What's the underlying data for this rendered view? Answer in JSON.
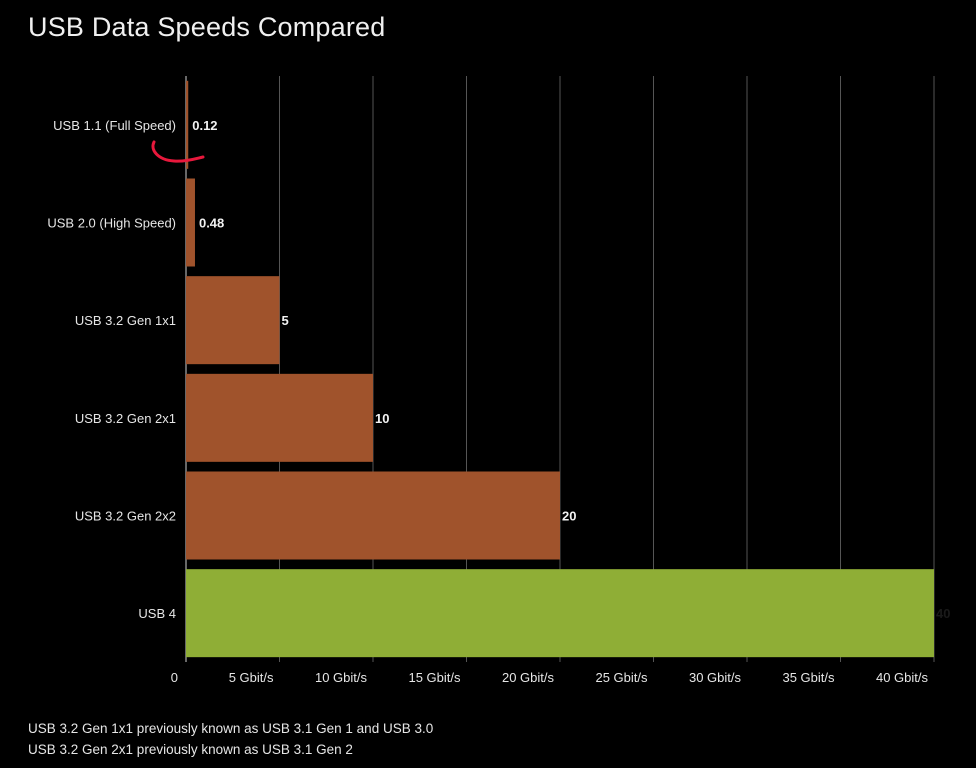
{
  "chart_data": {
    "type": "bar",
    "orientation": "horizontal",
    "title": "USB Data Speeds Compared",
    "categories": [
      "USB 1.1 (Full Speed)",
      "USB 2.0 (High Speed)",
      "USB 3.2 Gen 1x1",
      "USB 3.2 Gen 2x1",
      "USB 3.2 Gen 2x2",
      "USB 4"
    ],
    "values": [
      0.12,
      0.48,
      5,
      10,
      20,
      40
    ],
    "value_labels": [
      "0.12",
      "0.48",
      "5",
      "10",
      "20",
      "40"
    ],
    "bar_colors": [
      "#a0532c",
      "#a0532c",
      "#a0532c",
      "#a0532c",
      "#a0532c",
      "#8fae36"
    ],
    "xlim": [
      0,
      40
    ],
    "x_ticks": [
      0,
      5,
      10,
      15,
      20,
      25,
      30,
      35,
      40
    ],
    "x_tick_labels": [
      "0",
      "5 Gbit/s",
      "10 Gbit/s",
      "15 Gbit/s",
      "20 Gbit/s",
      "25 Gbit/s",
      "30 Gbit/s",
      "35 Gbit/s",
      "40 Gbit/s"
    ],
    "xlabel": "",
    "ylabel": "",
    "grid": true,
    "legend": "none",
    "annotation_color": "#e8183c"
  },
  "footnotes": [
    "USB 3.2 Gen 1x1 previously known as USB 3.1 Gen 1 and USB 3.0",
    "USB 3.2 Gen 2x1 previously known as USB 3.1 Gen 2"
  ],
  "colors": {
    "background": "#000000",
    "gridline": "#555555",
    "text": "#e6e6e6"
  }
}
